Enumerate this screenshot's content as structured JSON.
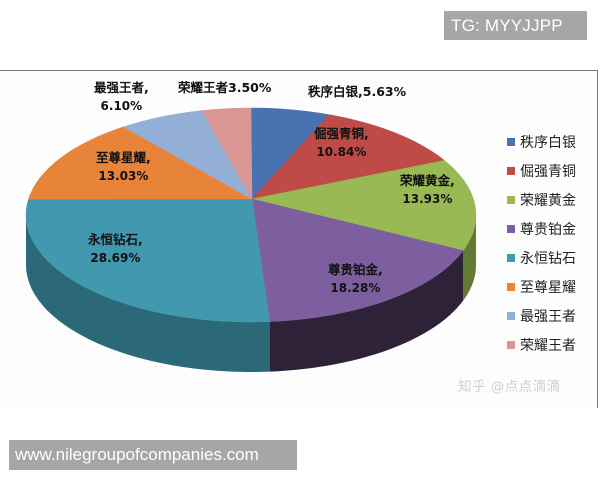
{
  "watermarks": {
    "tg": "TG: MYYJJPP",
    "zhihu": "知乎 @点点滴滴",
    "site": "www.nilegroupofcompanies.com"
  },
  "chart_data": {
    "type": "pie",
    "style": "3d",
    "title": "",
    "categories": [
      "秩序白银",
      "倔强青铜",
      "荣耀黄金",
      "尊贵铂金",
      "永恒钻石",
      "至尊星耀",
      "最强王者",
      "荣耀王者"
    ],
    "values": [
      5.63,
      10.84,
      13.93,
      18.28,
      28.69,
      13.03,
      6.1,
      3.5
    ],
    "unit": "%",
    "colors": [
      "#4a72b0",
      "#be4b48",
      "#98b954",
      "#7d5fa0",
      "#4198af",
      "#e8843a",
      "#94afd6",
      "#da9694"
    ],
    "side_colors": [
      "#2e4a78",
      "#7e2f2d",
      "#627a34",
      "#2e2238",
      "#2b6979",
      "#a85a24",
      "#637a9a",
      "#9a6a68"
    ],
    "data_labels": [
      {
        "name": "秩序白银",
        "pct": "5.63%",
        "text": "秩序白银,5.63%"
      },
      {
        "name": "倔强青铜",
        "pct": "10.84%",
        "text": "倔强青铜,"
      },
      {
        "name": "荣耀黄金",
        "pct": "13.93%",
        "text": "荣耀黄金,"
      },
      {
        "name": "尊贵铂金",
        "pct": "18.28%",
        "text": "尊贵铂金,"
      },
      {
        "name": "永恒钻石",
        "pct": "28.69%",
        "text": "永恒钻石,"
      },
      {
        "name": "至尊星耀",
        "pct": "13.03%",
        "text": "至尊星耀,"
      },
      {
        "name": "最强王者",
        "pct": "6.10%",
        "text": "最强王者,"
      },
      {
        "name": "荣耀王者",
        "pct": "3.50%",
        "text": "荣耀王者3.50%"
      }
    ],
    "legend_position": "right",
    "start_angle": "12 o'clock, clockwise"
  }
}
